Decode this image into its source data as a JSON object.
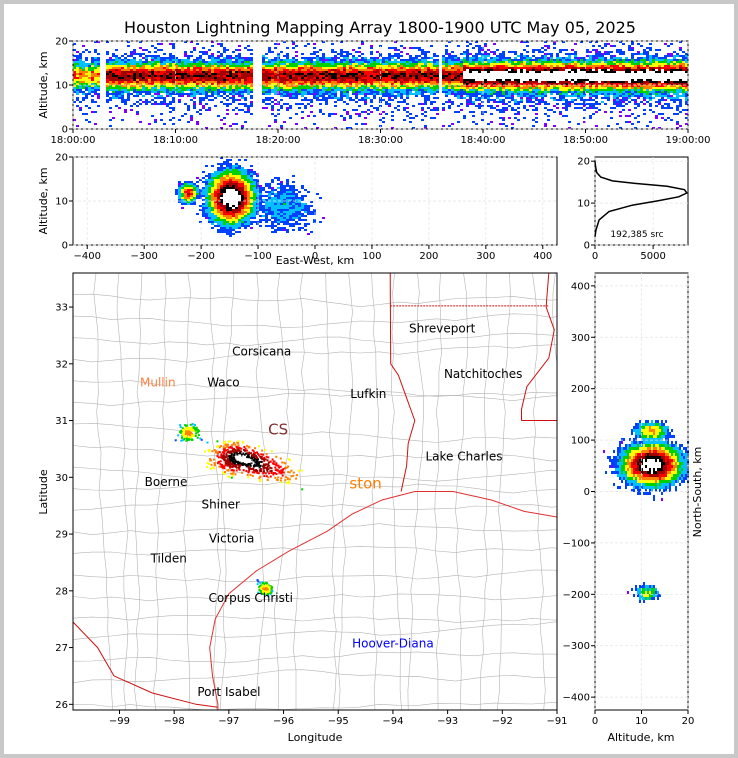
{
  "title": "Houston Lightning Mapping Array 1800-1900 UTC May 05, 2025",
  "colors": {
    "frame": "#c8c8c8",
    "county": "#b4b4b4",
    "state": "#d01010",
    "coast": "#e03030",
    "palette": [
      "#8000ff",
      "#0040ff",
      "#00c0ff",
      "#00d000",
      "#ffff00",
      "#ff8000",
      "#ff0000",
      "#a00000",
      "#000000",
      "#ffffff"
    ]
  },
  "chart_data": [
    {
      "type": "heatmap",
      "panel": "altitude-time",
      "ylabel": "Altitude, km",
      "ylim": [
        0,
        20
      ],
      "yticks": [
        "0",
        "10",
        "20"
      ],
      "xticks": [
        "18:00:00",
        "18:10:00",
        "18:20:00",
        "18:30:00",
        "18:40:00",
        "18:50:00",
        "19:00:00"
      ],
      "xlim_minutes": [
        0,
        60
      ],
      "gaps_minutes": [
        [
          2.5,
          3.2
        ],
        [
          17.5,
          18.2
        ],
        [
          35.5,
          35.9
        ]
      ]
    },
    {
      "type": "heatmap",
      "panel": "altitude-eastwest",
      "xlabel": "East-West, km",
      "ylabel": "Altitude, km",
      "xlim": [
        -425,
        425
      ],
      "ylim": [
        0,
        20
      ],
      "xticks": [
        "−400",
        "−300",
        "−200",
        "−100",
        "0",
        "100",
        "200",
        "300",
        "400"
      ],
      "yticks": [
        "0",
        "10",
        "20"
      ],
      "clusters": [
        {
          "x": -150,
          "alt": 11
        },
        {
          "x": -225,
          "alt": 12
        }
      ]
    },
    {
      "type": "line",
      "panel": "source-altitude-histogram",
      "annotation": "192,385 src",
      "xlim": [
        0,
        8000
      ],
      "ylim": [
        0,
        21
      ],
      "xticks": [
        "0",
        "5000"
      ],
      "yticks": [
        "0",
        "10",
        "20"
      ],
      "x": [
        0,
        80,
        350,
        1200,
        3200,
        5500,
        7200,
        7900,
        7700,
        6200,
        3800,
        1500,
        500,
        150,
        40,
        0
      ],
      "y": [
        2.0,
        3.5,
        6.0,
        8.0,
        9.5,
        10.6,
        11.5,
        12.4,
        13.2,
        14.0,
        14.6,
        15.3,
        16.2,
        17.3,
        18.8,
        20.0
      ]
    },
    {
      "type": "scatter",
      "panel": "plan-view-map",
      "xlabel": "Longitude",
      "ylabel": "Latitude",
      "xlim": [
        -99.85,
        -91.0
      ],
      "ylim": [
        25.9,
        33.6
      ],
      "xticks": [
        "−99",
        "−98",
        "−97",
        "−96",
        "−95",
        "−94",
        "−93",
        "−92",
        "−91"
      ],
      "yticks": [
        "26",
        "27",
        "28",
        "29",
        "30",
        "31",
        "32",
        "33"
      ],
      "clusters": [
        {
          "lon": -96.8,
          "lat": 30.35
        },
        {
          "lon": -97.75,
          "lat": 30.8
        },
        {
          "lon": -96.35,
          "lat": 28.05
        }
      ]
    },
    {
      "type": "heatmap",
      "panel": "northsouth-altitude",
      "xlabel": "Altitude, km",
      "ylabel": "North-South, km",
      "xlim": [
        0,
        20
      ],
      "ylim": [
        -425,
        425
      ],
      "xticks": [
        "0",
        "10",
        "20"
      ],
      "yticks": [
        "−400",
        "−300",
        "−200",
        "−100",
        "0",
        "100",
        "200",
        "300",
        "400"
      ]
    }
  ],
  "cities": [
    {
      "name": "Shreveport",
      "lon": -93.1,
      "lat": 32.55,
      "color": "#000000"
    },
    {
      "name": "Corsicana",
      "lon": -96.4,
      "lat": 32.15,
      "color": "#000000"
    },
    {
      "name": "Natchitoches",
      "lon": -92.35,
      "lat": 31.75,
      "color": "#000000"
    },
    {
      "name": "Mullin",
      "lon": -98.3,
      "lat": 31.6,
      "color": "#ff8040"
    },
    {
      "name": "Waco",
      "lon": -97.1,
      "lat": 31.6,
      "color": "#000000"
    },
    {
      "name": "Lufkin",
      "lon": -94.45,
      "lat": 31.4,
      "color": "#000000"
    },
    {
      "name": "Lake Charles",
      "lon": -92.7,
      "lat": 30.3,
      "color": "#000000"
    },
    {
      "name": "Boerne",
      "lon": -98.15,
      "lat": 29.85,
      "color": "#000000"
    },
    {
      "name": "Shiner",
      "lon": -97.15,
      "lat": 29.45,
      "color": "#000000"
    },
    {
      "name": "Victoria",
      "lon": -96.95,
      "lat": 28.85,
      "color": "#000000"
    },
    {
      "name": "Tilden",
      "lon": -98.1,
      "lat": 28.5,
      "color": "#000000"
    },
    {
      "name": "Corpus Christi",
      "lon": -96.6,
      "lat": 27.8,
      "color": "#000000"
    },
    {
      "name": "Hoover-Diana",
      "lon": -94.0,
      "lat": 27.0,
      "color": "#0000ff"
    },
    {
      "name": "Port Isabel",
      "lon": -97.0,
      "lat": 26.15,
      "color": "#000000"
    }
  ],
  "overlay_labels": [
    {
      "text": "CS",
      "lon": -96.1,
      "lat": 30.75,
      "color": "#803030"
    },
    {
      "text": "ston",
      "lon": -94.5,
      "lat": 29.8,
      "color": "#ff8000"
    }
  ]
}
